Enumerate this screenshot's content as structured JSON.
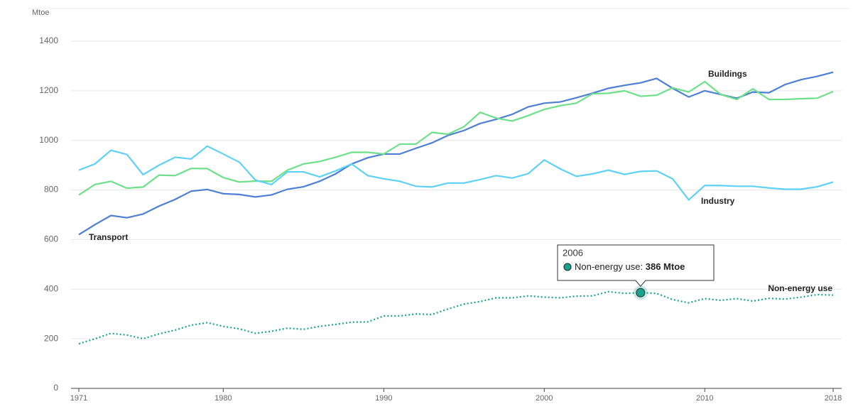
{
  "chart_data": {
    "type": "line",
    "y_label": "Mtoe",
    "x": [
      1971,
      1972,
      1973,
      1974,
      1975,
      1976,
      1977,
      1978,
      1979,
      1980,
      1981,
      1982,
      1983,
      1984,
      1985,
      1986,
      1987,
      1988,
      1989,
      1990,
      1991,
      1992,
      1993,
      1994,
      1995,
      1996,
      1997,
      1998,
      1999,
      2000,
      2001,
      2002,
      2003,
      2004,
      2005,
      2006,
      2007,
      2008,
      2009,
      2010,
      2011,
      2012,
      2013,
      2014,
      2015,
      2016,
      2017,
      2018
    ],
    "xlim": [
      1971,
      2018
    ],
    "xticks": [
      1971,
      1980,
      1990,
      2000,
      2010,
      2018
    ],
    "ylim": [
      0,
      1400
    ],
    "yticks": [
      0,
      200,
      400,
      600,
      800,
      1000,
      1200,
      1400
    ],
    "grid": true,
    "series": [
      {
        "name": "Transport",
        "color": "#4e7fd4",
        "style": "solid",
        "values": [
          620,
          660,
          697,
          688,
          703,
          735,
          762,
          795,
          802,
          785,
          782,
          772,
          780,
          803,
          813,
          835,
          865,
          905,
          930,
          945,
          945,
          968,
          990,
          1020,
          1040,
          1068,
          1085,
          1105,
          1135,
          1150,
          1155,
          1172,
          1190,
          1210,
          1222,
          1232,
          1250,
          1210,
          1175,
          1200,
          1185,
          1170,
          1195,
          1192,
          1225,
          1245,
          1258,
          1275
        ]
      },
      {
        "name": "Buildings",
        "color": "#6ee08a",
        "style": "solid",
        "values": [
          780,
          822,
          835,
          807,
          812,
          860,
          858,
          887,
          886,
          850,
          832,
          836,
          835,
          880,
          905,
          915,
          932,
          952,
          952,
          945,
          985,
          985,
          1032,
          1025,
          1055,
          1113,
          1090,
          1078,
          1100,
          1125,
          1140,
          1150,
          1188,
          1190,
          1200,
          1178,
          1182,
          1212,
          1195,
          1237,
          1185,
          1165,
          1208,
          1165,
          1165,
          1168,
          1170,
          1197
        ]
      },
      {
        "name": "Industry",
        "color": "#5fd1f5",
        "style": "solid",
        "values": [
          880,
          905,
          960,
          943,
          862,
          900,
          932,
          925,
          977,
          945,
          912,
          840,
          822,
          873,
          873,
          853,
          877,
          905,
          858,
          845,
          835,
          815,
          812,
          828,
          828,
          842,
          858,
          848,
          866,
          921,
          885,
          855,
          865,
          880,
          863,
          875,
          877,
          845,
          760,
          818,
          818,
          815,
          815,
          808,
          803,
          803,
          813,
          832
        ]
      },
      {
        "name": "Non-energy use",
        "color": "#1aa391",
        "style": "dotted",
        "values": [
          180,
          200,
          222,
          215,
          200,
          220,
          235,
          255,
          265,
          250,
          240,
          222,
          230,
          243,
          238,
          250,
          258,
          267,
          268,
          292,
          292,
          300,
          298,
          320,
          340,
          350,
          365,
          365,
          373,
          368,
          365,
          372,
          373,
          390,
          383,
          386,
          383,
          358,
          345,
          362,
          355,
          362,
          352,
          363,
          360,
          368,
          378,
          376
        ]
      }
    ],
    "tooltip": {
      "series": 3,
      "index": 35,
      "title": "2006",
      "label": "Non-energy use:",
      "value_label": "386 Mtoe"
    }
  }
}
